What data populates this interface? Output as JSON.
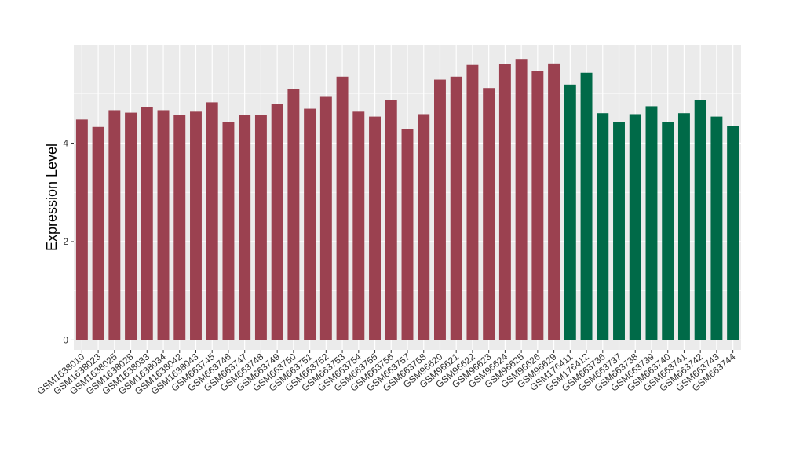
{
  "chart_data": {
    "type": "bar",
    "title": "",
    "xlabel": "",
    "ylabel": "Expression Level",
    "ylim": [
      -0.2,
      6.0
    ],
    "yticks": [
      0,
      2,
      4
    ],
    "grid": true,
    "legend": "none",
    "colors": {
      "group1": "#9b4150",
      "group2": "#006a48",
      "panel": "#ebebeb",
      "gridline": "#ffffff"
    },
    "categories": [
      "GSM1638010",
      "GSM1638023",
      "GSM1638025",
      "GSM1638028",
      "GSM1638033",
      "GSM1638034",
      "GSM1638042",
      "GSM1638043",
      "GSM663745",
      "GSM663746",
      "GSM663747",
      "GSM663748",
      "GSM663749",
      "GSM663750",
      "GSM663751",
      "GSM663752",
      "GSM663753",
      "GSM663754",
      "GSM663755",
      "GSM663756",
      "GSM663757",
      "GSM663758",
      "GSM96620",
      "GSM96621",
      "GSM96622",
      "GSM96623",
      "GSM96624",
      "GSM96625",
      "GSM96626",
      "GSM96629",
      "GSM176411",
      "GSM176412",
      "GSM663736",
      "GSM663737",
      "GSM663738",
      "GSM663739",
      "GSM663740",
      "GSM663741",
      "GSM663742",
      "GSM663743",
      "GSM663744"
    ],
    "values": [
      4.48,
      4.33,
      4.67,
      4.62,
      4.74,
      4.67,
      4.57,
      4.64,
      4.83,
      4.43,
      4.57,
      4.57,
      4.8,
      5.1,
      4.7,
      4.94,
      5.35,
      4.64,
      4.54,
      4.88,
      4.29,
      4.59,
      5.29,
      5.35,
      5.59,
      5.12,
      5.61,
      5.71,
      5.46,
      5.62,
      5.19,
      5.43,
      4.61,
      4.43,
      4.59,
      4.75,
      4.43,
      4.61,
      4.87,
      4.54,
      4.35
    ],
    "groups": [
      1,
      1,
      1,
      1,
      1,
      1,
      1,
      1,
      1,
      1,
      1,
      1,
      1,
      1,
      1,
      1,
      1,
      1,
      1,
      1,
      1,
      1,
      1,
      1,
      1,
      1,
      1,
      1,
      1,
      1,
      2,
      2,
      2,
      2,
      2,
      2,
      2,
      2,
      2,
      2,
      2
    ]
  }
}
